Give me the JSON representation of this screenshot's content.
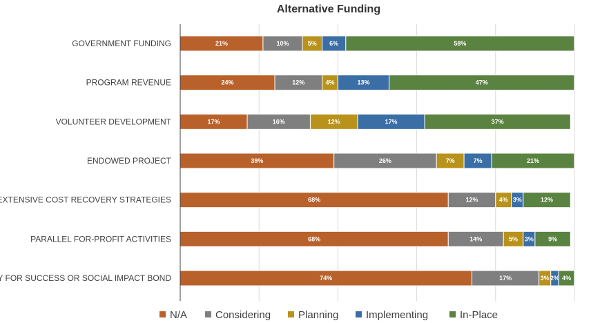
{
  "chart_data": {
    "type": "bar",
    "orientation": "horizontal",
    "stacked": true,
    "title": "Alternative Funding",
    "xlabel": "",
    "ylabel": "",
    "xlim": [
      0,
      100
    ],
    "grid": true,
    "legend_position": "bottom",
    "categories": [
      "GOVERNMENT FUNDING",
      "PROGRAM REVENUE",
      "VOLUNTEER DEVELOPMENT",
      "ENDOWED PROJECT",
      "EXTENSIVE COST RECOVERY STRATEGIES",
      "PARALLEL FOR-PROFIT ACTIVITIES",
      "PAY FOR SUCCESS OR SOCIAL IMPACT BOND"
    ],
    "series": [
      {
        "name": "N/A",
        "color": "#B8612B",
        "values": [
          21,
          24,
          17,
          39,
          68,
          68,
          74
        ]
      },
      {
        "name": "Considering",
        "color": "#7F7F7F",
        "values": [
          10,
          12,
          16,
          26,
          12,
          14,
          17
        ]
      },
      {
        "name": "Planning",
        "color": "#B8921B",
        "values": [
          5,
          4,
          12,
          7,
          4,
          5,
          3
        ]
      },
      {
        "name": "Implementing",
        "color": "#3A6EA5",
        "values": [
          6,
          13,
          17,
          7,
          3,
          3,
          2
        ]
      },
      {
        "name": "In-Place",
        "color": "#5A8240",
        "values": [
          58,
          47,
          37,
          21,
          12,
          9,
          4
        ]
      }
    ],
    "data_labels": [
      [
        "21%",
        "24%",
        "17%",
        "39%",
        "68%",
        "68%",
        "74%"
      ],
      [
        "10%",
        "12%",
        "16%",
        "26%",
        "12%",
        "14%",
        "17%"
      ],
      [
        "5%",
        "4%",
        "12%",
        "7%",
        "4%",
        "5%",
        "3%"
      ],
      [
        "6%",
        "13%",
        "17%",
        "7%",
        "3%",
        "3%",
        "2%"
      ],
      [
        "58%",
        "47%",
        "37%",
        "21%",
        "12%",
        "9%",
        "4%"
      ]
    ]
  }
}
